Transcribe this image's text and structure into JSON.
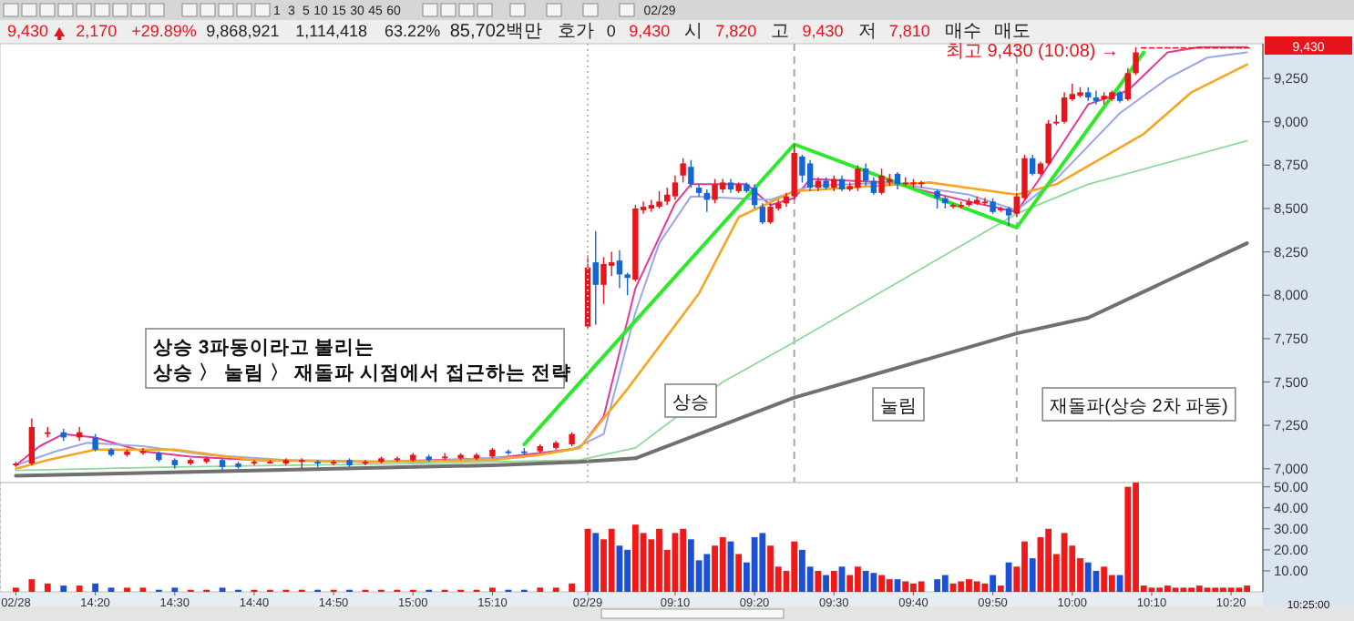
{
  "chart_data": [
    {
      "type": "candlestick",
      "categories": [
        "02/28",
        null,
        null,
        null,
        null,
        null,
        null,
        null,
        null,
        null,
        "14:20",
        null,
        null,
        null,
        null,
        null,
        null,
        null,
        null,
        null,
        "14:30",
        null,
        null,
        null,
        null,
        null,
        null,
        null,
        null,
        null,
        "14:40",
        null,
        null,
        null,
        null,
        null,
        null,
        null,
        null,
        null,
        "14:50",
        null,
        null,
        null,
        null,
        null,
        null,
        null,
        null,
        null,
        "15:00",
        null,
        null,
        null,
        null,
        null,
        null,
        null,
        null,
        null,
        "15:10",
        null,
        null,
        null,
        null,
        null,
        null,
        null,
        null,
        null,
        null,
        null,
        "02/29",
        null,
        null,
        null,
        null,
        null,
        null,
        null,
        null,
        null,
        null,
        "09:10",
        null,
        null,
        null,
        null,
        null,
        null,
        null,
        null,
        null,
        "09:20",
        null,
        null,
        null,
        null,
        null,
        null,
        null,
        null,
        null,
        "09:30",
        null,
        null,
        null,
        null,
        null,
        null,
        null,
        null,
        null,
        "09:40",
        null,
        null,
        null,
        null,
        null,
        null,
        null,
        null,
        null,
        "09:50",
        null,
        null,
        null,
        null,
        null,
        null,
        null,
        null,
        null,
        "10:00",
        null,
        null,
        null,
        null,
        null,
        null,
        null,
        null,
        null,
        "10:10",
        null,
        null,
        null,
        null,
        null,
        null,
        null,
        null,
        null,
        "10:20",
        null,
        null
      ],
      "ylim": [
        6920,
        9450
      ],
      "yticks": [
        {
          "value": 7000,
          "label": "7,000"
        },
        {
          "value": 7250,
          "label": "7,250"
        },
        {
          "value": 7500,
          "label": "7,500"
        },
        {
          "value": 7750,
          "label": "7,750"
        },
        {
          "value": 8000,
          "label": "8,000"
        },
        {
          "value": 8250,
          "label": "8,250"
        },
        {
          "value": 8500,
          "label": "8,500"
        },
        {
          "value": 8750,
          "label": "8,750"
        },
        {
          "value": 9000,
          "label": "9,000"
        },
        {
          "value": 9250,
          "label": "9,250"
        }
      ],
      "tick_labels": "y",
      "ohlc": [
        [
          7020,
          7040,
          7010,
          7030
        ],
        null,
        [
          7030,
          7290,
          7020,
          7240
        ],
        null,
        [
          7200,
          7240,
          7180,
          7210
        ],
        null,
        [
          7210,
          7230,
          7160,
          7180
        ],
        null,
        [
          7180,
          7240,
          7160,
          7210
        ],
        null,
        [
          7180,
          7200,
          7100,
          7110
        ],
        null,
        [
          7110,
          7120,
          7070,
          7080
        ],
        null,
        [
          7080,
          7110,
          7070,
          7100
        ],
        null,
        [
          7090,
          7120,
          7080,
          7100
        ],
        null,
        [
          7090,
          7100,
          7040,
          7050
        ],
        null,
        [
          7050,
          7060,
          7000,
          7020
        ],
        null,
        [
          7030,
          7060,
          7020,
          7050
        ],
        null,
        [
          7040,
          7070,
          7030,
          7060
        ],
        null,
        [
          7050,
          7060,
          6990,
          7010
        ],
        null,
        [
          7030,
          7040,
          7000,
          7010
        ],
        null,
        [
          7030,
          7050,
          7020,
          7040
        ],
        null,
        [
          7030,
          7050,
          7030,
          7040
        ],
        null,
        [
          7030,
          7060,
          7020,
          7050
        ],
        null,
        [
          7040,
          7060,
          7000,
          7050
        ],
        null,
        [
          7040,
          7050,
          7010,
          7030
        ],
        null,
        [
          7030,
          7050,
          7020,
          7040
        ],
        null,
        [
          7050,
          7060,
          7010,
          7020
        ],
        null,
        [
          7030,
          7050,
          7020,
          7040
        ],
        null,
        [
          7040,
          7070,
          7030,
          7060
        ],
        null,
        [
          7050,
          7070,
          7040,
          7060
        ],
        null,
        [
          7050,
          7090,
          7040,
          7080
        ],
        null,
        [
          7070,
          7080,
          7040,
          7050
        ],
        null,
        [
          7060,
          7090,
          7050,
          7070
        ],
        null,
        [
          7060,
          7090,
          7050,
          7080
        ],
        null,
        [
          7060,
          7090,
          7050,
          7080
        ],
        null,
        [
          7070,
          7120,
          7060,
          7110
        ],
        null,
        [
          7100,
          7110,
          7080,
          7090
        ],
        null,
        [
          7100,
          7120,
          7080,
          7090
        ],
        null,
        [
          7100,
          7140,
          7090,
          7130
        ],
        null,
        [
          7120,
          7160,
          7110,
          7150
        ],
        null,
        [
          7140,
          7210,
          7130,
          7200
        ],
        null,
        [
          7820,
          8230,
          7810,
          8160
        ],
        [
          8190,
          8370,
          7830,
          8060
        ],
        [
          8060,
          8220,
          7950,
          8180
        ],
        [
          8170,
          8250,
          8110,
          8190
        ],
        [
          8200,
          8260,
          8040,
          8120
        ],
        [
          8120,
          8130,
          8000,
          8100
        ],
        [
          8090,
          8520,
          8080,
          8500
        ],
        [
          8490,
          8540,
          8470,
          8510
        ],
        [
          8500,
          8550,
          8480,
          8520
        ],
        [
          8510,
          8600,
          8500,
          8540
        ],
        [
          8540,
          8620,
          8520,
          8580
        ],
        [
          8570,
          8690,
          8550,
          8650
        ],
        [
          8690,
          8790,
          8650,
          8760
        ],
        [
          8740,
          8780,
          8620,
          8640
        ],
        [
          8620,
          8640,
          8570,
          8590
        ],
        [
          8590,
          8610,
          8480,
          8550
        ],
        [
          8550,
          8670,
          8530,
          8640
        ],
        [
          8610,
          8670,
          8590,
          8650
        ],
        [
          8650,
          8670,
          8590,
          8610
        ],
        [
          8600,
          8650,
          8590,
          8640
        ],
        [
          8640,
          8650,
          8590,
          8600
        ],
        [
          8620,
          8640,
          8500,
          8520
        ],
        [
          8510,
          8530,
          8410,
          8420
        ],
        [
          8420,
          8530,
          8410,
          8510
        ],
        [
          8500,
          8550,
          8490,
          8530
        ],
        [
          8530,
          8590,
          8510,
          8570
        ],
        [
          8570,
          8870,
          8550,
          8820
        ],
        [
          8800,
          8810,
          8650,
          8690
        ],
        [
          8760,
          8780,
          8600,
          8620
        ],
        [
          8620,
          8680,
          8600,
          8660
        ],
        [
          8660,
          8680,
          8610,
          8620
        ],
        [
          8620,
          8690,
          8600,
          8670
        ],
        [
          8670,
          8690,
          8600,
          8610
        ],
        [
          8610,
          8650,
          8600,
          8630
        ],
        [
          8620,
          8750,
          8600,
          8730
        ],
        [
          8730,
          8760,
          8630,
          8660
        ],
        [
          8660,
          8680,
          8580,
          8590
        ],
        [
          8590,
          8730,
          8580,
          8690
        ],
        [
          8650,
          8700,
          8630,
          8670
        ],
        [
          8700,
          8710,
          8610,
          8640
        ],
        [
          8640,
          8680,
          8630,
          8650
        ],
        [
          8640,
          8670,
          8620,
          8650
        ],
        [
          8640,
          8660,
          8620,
          8650
        ],
        null,
        [
          8600,
          8610,
          8500,
          8560
        ],
        [
          8560,
          8570,
          8500,
          8530
        ],
        [
          8510,
          8530,
          8500,
          8520
        ],
        [
          8510,
          8540,
          8500,
          8520
        ],
        [
          8520,
          8560,
          8510,
          8540
        ],
        [
          8530,
          8570,
          8520,
          8550
        ],
        [
          8530,
          8560,
          8520,
          8540
        ],
        [
          8540,
          8560,
          8470,
          8480
        ],
        [
          8490,
          8510,
          8480,
          8500
        ],
        [
          8500,
          8510,
          8400,
          8460
        ],
        [
          8470,
          8590,
          8450,
          8570
        ],
        [
          8560,
          8810,
          8550,
          8790
        ],
        [
          8790,
          8810,
          8690,
          8700
        ],
        [
          8700,
          8770,
          8690,
          8760
        ],
        [
          8760,
          9010,
          8750,
          8990
        ],
        [
          8990,
          9040,
          8980,
          9000
        ],
        [
          9000,
          9170,
          8990,
          9140
        ],
        [
          9130,
          9220,
          9120,
          9160
        ],
        [
          9150,
          9200,
          9140,
          9170
        ],
        [
          9170,
          9200,
          9120,
          9140
        ],
        [
          9140,
          9180,
          9100,
          9120
        ],
        [
          9130,
          9170,
          9100,
          9150
        ],
        [
          9130,
          9180,
          9120,
          9170
        ],
        [
          9170,
          9180,
          9110,
          9120
        ],
        [
          9130,
          9310,
          9120,
          9280
        ],
        [
          9280,
          9430,
          9270,
          9400
        ],
        [
          9430,
          9430,
          9430,
          9430
        ],
        [
          9430,
          9430,
          9430,
          9430
        ],
        [
          9430,
          9430,
          9430,
          9430
        ],
        [
          9430,
          9430,
          9430,
          9430
        ],
        [
          9430,
          9430,
          9430,
          9430
        ],
        [
          9430,
          9430,
          9430,
          9430
        ],
        [
          9430,
          9430,
          9430,
          9430
        ],
        [
          9430,
          9430,
          9430,
          9430
        ],
        [
          9430,
          9430,
          9430,
          9430
        ],
        [
          9430,
          9430,
          9430,
          9430
        ],
        [
          9430,
          9430,
          9430,
          9430
        ],
        [
          9430,
          9430,
          9430,
          9430
        ],
        [
          9430,
          9430,
          9430,
          9430
        ],
        [
          9430,
          9430,
          9430,
          9430
        ]
      ],
      "series": [
        {
          "type": "line",
          "color": "#e0399a",
          "values": [
            7020,
            null,
            null,
            7130,
            null,
            null,
            7200,
            null,
            null,
            null,
            7180,
            null,
            null,
            null,
            null,
            null,
            7100,
            null,
            null,
            null,
            null,
            null,
            7070,
            null,
            null,
            null,
            null,
            null,
            null,
            null,
            7050,
            null,
            null,
            null,
            null,
            null,
            null,
            null,
            null,
            null,
            null,
            null,
            null,
            null,
            null,
            7040,
            null,
            null,
            null,
            null,
            null,
            null,
            null,
            null,
            null,
            null,
            null,
            null,
            null,
            null,
            7060,
            null,
            null,
            null,
            null,
            null,
            7090,
            null,
            null,
            null,
            null,
            7120,
            null,
            null,
            7300,
            null,
            null,
            null,
            8040,
            null,
            null,
            null,
            null,
            8530,
            null,
            8640,
            null,
            null,
            null,
            null,
            null,
            null,
            8640,
            null,
            null,
            8520,
            null,
            null,
            8560,
            null,
            8670,
            null,
            null,
            null,
            null,
            null,
            null,
            null,
            null,
            null,
            8650,
            null,
            null,
            null,
            null,
            null,
            null,
            null,
            null,
            null,
            8540,
            null,
            null,
            null,
            null,
            null,
            8480,
            null,
            null,
            8680,
            null,
            null,
            null,
            null,
            null,
            9100,
            null,
            null,
            null,
            null,
            9180,
            null,
            null,
            null,
            null,
            9400,
            null,
            null,
            null,
            9430,
            null,
            null,
            null,
            null,
            null,
            9430
          ]
        },
        {
          "type": "line",
          "color": "#9ba6e6",
          "values": [
            7020,
            null,
            null,
            null,
            null,
            7100,
            null,
            null,
            null,
            7150,
            null,
            null,
            null,
            null,
            null,
            null,
            7130,
            null,
            null,
            null,
            null,
            null,
            null,
            null,
            7080,
            null,
            null,
            null,
            null,
            null,
            null,
            null,
            null,
            null,
            7050,
            null,
            null,
            null,
            null,
            null,
            null,
            null,
            null,
            null,
            null,
            null,
            null,
            null,
            null,
            null,
            7040,
            null,
            null,
            null,
            null,
            null,
            null,
            null,
            null,
            null,
            null,
            null,
            null,
            null,
            7070,
            null,
            null,
            null,
            null,
            null,
            7110,
            null,
            null,
            null,
            7200,
            null,
            null,
            null,
            7900,
            null,
            null,
            8300,
            null,
            null,
            null,
            8570,
            null,
            null,
            null,
            null,
            null,
            null,
            null,
            null,
            null,
            8550,
            null,
            null,
            null,
            null,
            8630,
            null,
            null,
            null,
            null,
            null,
            null,
            null,
            null,
            null,
            8650,
            null,
            null,
            null,
            null,
            null,
            null,
            null,
            null,
            null,
            8580,
            null,
            null,
            null,
            null,
            null,
            8490,
            null,
            null,
            null,
            null,
            8670,
            null,
            null,
            null,
            null,
            null,
            null,
            null,
            9050,
            null,
            null,
            null,
            null,
            null,
            9250,
            null,
            null,
            null,
            null,
            9370,
            null,
            null,
            null,
            null,
            9400
          ]
        },
        {
          "type": "line",
          "color": "#f5a623",
          "values": [
            7000,
            null,
            null,
            null,
            7050,
            null,
            null,
            null,
            null,
            null,
            7110,
            null,
            null,
            null,
            null,
            null,
            null,
            null,
            null,
            null,
            7110,
            null,
            null,
            null,
            null,
            null,
            null,
            null,
            null,
            null,
            7050,
            null,
            null,
            null,
            null,
            null,
            null,
            null,
            null,
            null,
            null,
            null,
            null,
            null,
            null,
            7040,
            null,
            null,
            null,
            null,
            null,
            null,
            null,
            null,
            null,
            null,
            null,
            null,
            null,
            null,
            7050,
            null,
            null,
            null,
            null,
            null,
            7080,
            null,
            null,
            null,
            null,
            7120,
            null,
            null,
            null,
            null,
            null,
            7460,
            null,
            null,
            null,
            null,
            null,
            null,
            null,
            null,
            8010,
            null,
            null,
            null,
            null,
            8450,
            null,
            null,
            null,
            null,
            null,
            null,
            8600,
            null,
            null,
            null,
            null,
            null,
            null,
            null,
            null,
            null,
            null,
            null,
            null,
            null,
            null,
            null,
            null,
            8650,
            null,
            null,
            null,
            null,
            null,
            null,
            null,
            null,
            null,
            null,
            8580,
            null,
            null,
            null,
            null,
            8640,
            null,
            null,
            null,
            null,
            null,
            null,
            null,
            null,
            null,
            null,
            8930,
            null,
            null,
            null,
            null,
            null,
            9170,
            null,
            null,
            null,
            null,
            null,
            null,
            9330
          ]
        },
        {
          "type": "line",
          "color": "#8fd79a",
          "values": [
            6990,
            null,
            null,
            null,
            null,
            null,
            null,
            null,
            null,
            null,
            null,
            null,
            null,
            null,
            null,
            null,
            null,
            null,
            null,
            null,
            7010,
            null,
            null,
            null,
            null,
            null,
            null,
            null,
            null,
            null,
            null,
            null,
            null,
            null,
            null,
            null,
            null,
            null,
            null,
            null,
            null,
            null,
            null,
            null,
            null,
            null,
            null,
            null,
            null,
            null,
            7030,
            null,
            null,
            null,
            null,
            null,
            null,
            null,
            null,
            null,
            null,
            null,
            null,
            null,
            null,
            null,
            null,
            null,
            null,
            null,
            null,
            7050,
            null,
            null,
            null,
            null,
            null,
            null,
            7120,
            null,
            null,
            null,
            null,
            null,
            null,
            null,
            null,
            null,
            null,
            7500,
            null,
            null,
            null,
            null,
            null,
            null,
            null,
            null,
            7730,
            null,
            null,
            null,
            null,
            null,
            null,
            null,
            null,
            null,
            null,
            null,
            null,
            null,
            null,
            null,
            null,
            null,
            null,
            null,
            null,
            null,
            null,
            null,
            null,
            null,
            null,
            null,
            8470,
            null,
            null,
            null,
            null,
            null,
            null,
            null,
            null,
            8640,
            null,
            null,
            null,
            null,
            null,
            null,
            null,
            null,
            null,
            null,
            null,
            null,
            null,
            null,
            null,
            null,
            null,
            null,
            null,
            8890
          ]
        },
        {
          "type": "line",
          "color": "#707070",
          "values": [
            6960,
            null,
            null,
            null,
            null,
            null,
            null,
            null,
            null,
            null,
            null,
            null,
            null,
            null,
            null,
            null,
            null,
            null,
            null,
            null,
            null,
            null,
            null,
            null,
            null,
            null,
            null,
            null,
            null,
            null,
            6990,
            null,
            null,
            null,
            null,
            null,
            null,
            null,
            null,
            null,
            null,
            null,
            null,
            null,
            null,
            null,
            null,
            null,
            null,
            null,
            null,
            null,
            null,
            null,
            null,
            null,
            null,
            null,
            null,
            null,
            7020,
            null,
            null,
            null,
            null,
            null,
            null,
            null,
            null,
            null,
            null,
            7040,
            null,
            null,
            null,
            null,
            null,
            null,
            7060,
            null,
            null,
            null,
            null,
            null,
            null,
            null,
            null,
            null,
            null,
            null,
            null,
            null,
            null,
            null,
            null,
            null,
            null,
            null,
            7410,
            null,
            null,
            null,
            null,
            null,
            null,
            null,
            null,
            null,
            null,
            null,
            null,
            null,
            null,
            null,
            null,
            null,
            null,
            null,
            null,
            null,
            null,
            null,
            null,
            null,
            null,
            null,
            7780,
            null,
            null,
            null,
            null,
            null,
            null,
            null,
            null,
            7870,
            null,
            null,
            null,
            null,
            null,
            null,
            null,
            null,
            null,
            null,
            null,
            null,
            null,
            null,
            null,
            null,
            null,
            null,
            null,
            8300
          ]
        },
        {
          "type": "line",
          "color": "#2ee82a",
          "values": [
            null,
            null,
            null,
            null,
            null,
            null,
            null,
            null,
            null,
            null,
            null,
            null,
            null,
            null,
            null,
            null,
            null,
            null,
            null,
            null,
            null,
            null,
            null,
            null,
            null,
            null,
            null,
            null,
            null,
            null,
            null,
            null,
            null,
            null,
            null,
            null,
            null,
            null,
            null,
            null,
            null,
            null,
            null,
            null,
            null,
            null,
            null,
            null,
            null,
            null,
            null,
            null,
            null,
            null,
            null,
            null,
            null,
            null,
            null,
            null,
            null,
            null,
            null,
            null,
            7140,
            null,
            null,
            null,
            null,
            null,
            null,
            null,
            null,
            null,
            null,
            null,
            null,
            null,
            null,
            null,
            null,
            null,
            null,
            null,
            null,
            null,
            null,
            null,
            null,
            null,
            null,
            null,
            null,
            null,
            null,
            null,
            null,
            null,
            8870,
            null,
            null,
            null,
            null,
            null,
            null,
            null,
            null,
            null,
            null,
            null,
            null,
            null,
            null,
            null,
            null,
            null,
            null,
            null,
            null,
            null,
            null,
            null,
            null,
            null,
            null,
            null,
            8390,
            null,
            null,
            null,
            null,
            null,
            null,
            null,
            null,
            null,
            null,
            null,
            null,
            null,
            null,
            null,
            9400,
            null,
            null,
            null,
            null,
            null,
            null,
            null,
            null,
            null,
            null,
            null,
            null,
            null
          ]
        }
      ],
      "ref_lines": [
        {
          "axis": "x",
          "value": "02/29",
          "color": "#b8b8b8",
          "line_style": "dotted"
        }
      ],
      "annotations": [
        "상승 3파동이라고 불리는\n상승 〉 눌림 〉 재돌파 시점에서 접근하는 전략",
        "상승",
        "눌림",
        "재돌파(상승 2차 파동)",
        "9,430",
        "10:25:00",
        "최고 9,430 (10:08) →",
        "9,430",
        "2,170",
        "+29.89%",
        "9,868,921",
        "1,114,418",
        "63.22%",
        "85,702백만",
        "호가",
        "0",
        "9,430",
        "시",
        "7,820",
        "고",
        "9,430",
        "저",
        "7,810",
        "매수",
        "매도",
        "1",
        "3",
        "5",
        "10",
        "15",
        "30",
        "45",
        "60",
        "02/29"
      ]
    },
    {
      "type": "bar",
      "categories": [
        "02/28",
        null,
        null,
        null,
        null,
        null,
        null,
        null,
        null,
        null,
        "14:20",
        null,
        null,
        null,
        null,
        null,
        null,
        null,
        null,
        null,
        "14:30",
        null,
        null,
        null,
        null,
        null,
        null,
        null,
        null,
        null,
        "14:40",
        null,
        null,
        null,
        null,
        null,
        null,
        null,
        null,
        null,
        "14:50",
        null,
        null,
        null,
        null,
        null,
        null,
        null,
        null,
        null,
        "15:00",
        null,
        null,
        null,
        null,
        null,
        null,
        null,
        null,
        null,
        "15:10",
        null,
        null,
        null,
        null,
        null,
        null,
        null,
        null,
        null,
        null,
        null,
        "02/29",
        null,
        null,
        null,
        null,
        null,
        null,
        null,
        null,
        null,
        null,
        "09:10",
        null,
        null,
        null,
        null,
        null,
        null,
        null,
        null,
        null,
        "09:20",
        null,
        null,
        null,
        null,
        null,
        null,
        null,
        null,
        null,
        "09:30",
        null,
        null,
        null,
        null,
        null,
        null,
        null,
        null,
        null,
        "09:40",
        null,
        null,
        null,
        null,
        null,
        null,
        null,
        null,
        null,
        "09:50",
        null,
        null,
        null,
        null,
        null,
        null,
        null,
        null,
        null,
        "10:00",
        null,
        null,
        null,
        null,
        null,
        null,
        null,
        null,
        null,
        "10:10",
        null,
        null,
        null,
        null,
        null,
        null,
        null,
        null,
        null,
        "10:20",
        null,
        null
      ],
      "ylim": [
        0,
        52
      ],
      "yticks": [
        {
          "value": 10,
          "label": "10.00"
        },
        {
          "value": 20,
          "label": "20.00"
        },
        {
          "value": 30,
          "label": "30.00"
        },
        {
          "value": 40,
          "label": "40.00"
        },
        {
          "value": 50,
          "label": "50.00"
        }
      ],
      "values": [
        2,
        null,
        6,
        null,
        4,
        null,
        3,
        null,
        3,
        null,
        4,
        null,
        2,
        null,
        2,
        null,
        2,
        null,
        1,
        null,
        2,
        null,
        1,
        null,
        1,
        null,
        2,
        null,
        1,
        null,
        1,
        null,
        1,
        null,
        1,
        null,
        1,
        null,
        1,
        null,
        1,
        null,
        1,
        null,
        1,
        null,
        1,
        null,
        1,
        null,
        1,
        null,
        1,
        null,
        1,
        null,
        1,
        null,
        1,
        null,
        2,
        null,
        1,
        null,
        1,
        null,
        2,
        null,
        2,
        null,
        4,
        null,
        30,
        28,
        25,
        30,
        22,
        20,
        32,
        28,
        25,
        30,
        20,
        28,
        30,
        25,
        15,
        18,
        22,
        26,
        24,
        18,
        14,
        26,
        28,
        22,
        12,
        10,
        24,
        20,
        12,
        10,
        8,
        10,
        12,
        8,
        12,
        10,
        9,
        8,
        6,
        6,
        5,
        4,
        5,
        null,
        6,
        8,
        4,
        5,
        6,
        5,
        4,
        8,
        3,
        14,
        12,
        24,
        16,
        26,
        30,
        18,
        28,
        22,
        16,
        14,
        10,
        12,
        8,
        8,
        50,
        52,
        3,
        2,
        2,
        3,
        2,
        2,
        2,
        3,
        2,
        2,
        2,
        2,
        2,
        3
      ],
      "colors": [
        "#f01818",
        null,
        "#f01818",
        null,
        "#f01818",
        null,
        "#1a4fd6",
        null,
        "#f01818",
        null,
        "#1a4fd6",
        null,
        "#1a4fd6",
        null,
        "#f01818",
        null,
        "#f01818",
        null,
        "#1a4fd6",
        null,
        "#1a4fd6",
        null,
        "#f01818",
        null,
        "#f01818",
        null,
        "#1a4fd6",
        null,
        "#1a4fd6",
        null,
        "#f01818",
        null,
        "#f01818",
        null,
        "#f01818",
        null,
        "#f01818",
        null,
        "#1a4fd6",
        null,
        "#f01818",
        null,
        "#1a4fd6",
        null,
        "#f01818",
        null,
        "#f01818",
        null,
        "#f01818",
        null,
        "#f01818",
        null,
        "#1a4fd6",
        null,
        "#f01818",
        null,
        "#f01818",
        null,
        "#f01818",
        null,
        "#f01818",
        null,
        "#1a4fd6",
        null,
        "#1a4fd6",
        null,
        "#f01818",
        null,
        "#f01818",
        null,
        "#f01818",
        null,
        "#f01818",
        "#1a4fd6",
        "#f01818",
        "#f01818",
        "#1a4fd6",
        "#1a4fd6",
        "#f01818",
        "#f01818",
        "#f01818",
        "#f01818",
        "#f01818",
        "#f01818",
        "#f01818",
        "#1a4fd6",
        "#1a4fd6",
        "#1a4fd6",
        "#f01818",
        "#f01818",
        "#1a4fd6",
        "#f01818",
        "#1a4fd6",
        "#1a4fd6",
        "#1a4fd6",
        "#f01818",
        "#f01818",
        "#f01818",
        "#f01818",
        "#1a4fd6",
        "#1a4fd6",
        "#f01818",
        "#1a4fd6",
        "#f01818",
        "#1a4fd6",
        "#f01818",
        "#f01818",
        "#1a4fd6",
        "#1a4fd6",
        "#f01818",
        "#f01818",
        "#1a4fd6",
        "#f01818",
        "#f01818",
        "#f01818",
        null,
        "#1a4fd6",
        "#1a4fd6",
        "#f01818",
        "#f01818",
        "#f01818",
        "#f01818",
        "#f01818",
        "#1a4fd6",
        "#f01818",
        "#1a4fd6",
        "#f01818",
        "#f01818",
        "#1a4fd6",
        "#f01818",
        "#f01818",
        "#f01818",
        "#f01818",
        "#f01818",
        "#f01818",
        "#1a4fd6",
        "#1a4fd6",
        "#f01818",
        "#f01818",
        "#1a4fd6",
        "#f01818",
        "#f01818",
        "#f01818",
        "#f01818",
        "#f01818",
        "#f01818",
        "#f01818",
        "#f01818",
        "#f01818",
        "#f01818",
        "#f01818",
        "#f01818",
        "#f01818",
        "#f01818",
        "#f01818",
        "#f01818"
      ]
    }
  ]
}
